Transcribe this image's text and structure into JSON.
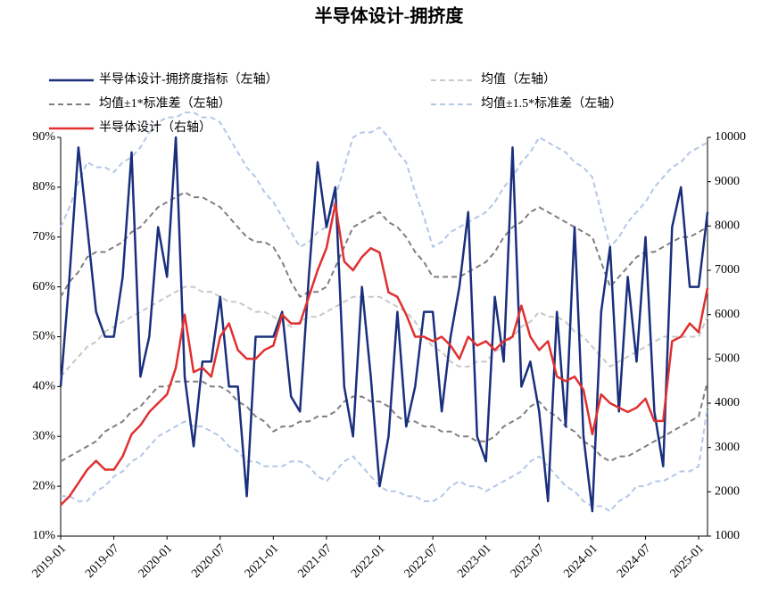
{
  "chart_data": {
    "type": "line",
    "title": "半导体设计-拥挤度",
    "categories": [
      "2019-01",
      null,
      null,
      null,
      null,
      null,
      "2019-07",
      null,
      null,
      null,
      null,
      null,
      "2020-01",
      null,
      null,
      null,
      null,
      null,
      "2020-07",
      null,
      null,
      null,
      null,
      null,
      "2021-01",
      null,
      null,
      null,
      null,
      null,
      "2021-07",
      null,
      null,
      null,
      null,
      null,
      "2022-01",
      null,
      null,
      null,
      null,
      null,
      "2022-07",
      null,
      null,
      null,
      null,
      null,
      "2023-01",
      null,
      null,
      null,
      null,
      null,
      "2023-07",
      null,
      null,
      null,
      null,
      null,
      "2024-01",
      null,
      null,
      null,
      null,
      null,
      "2024-07",
      null,
      null,
      null,
      null,
      null,
      "2025-01",
      null
    ],
    "ylim": [
      10,
      90
    ],
    "yticks": [
      {
        "value": 10,
        "label": "10%"
      },
      {
        "value": 20,
        "label": "20%"
      },
      {
        "value": 30,
        "label": "30%"
      },
      {
        "value": 40,
        "label": "40%"
      },
      {
        "value": 50,
        "label": "50%"
      },
      {
        "value": 60,
        "label": "60%"
      },
      {
        "value": 70,
        "label": "70%"
      },
      {
        "value": 80,
        "label": "80%"
      },
      {
        "value": 90,
        "label": "90%"
      }
    ],
    "y2lim": [
      1000,
      10000
    ],
    "y2ticks": [
      1000,
      2000,
      3000,
      4000,
      5000,
      6000,
      7000,
      8000,
      9000,
      10000
    ],
    "legend": "top",
    "series": [
      {
        "name": "半导体设计-拥挤度指标（左轴）",
        "color": "#1a2f7d",
        "dash": "none",
        "values": [
          40,
          62,
          88,
          72,
          55,
          50,
          50,
          62,
          87,
          42,
          50,
          72,
          62,
          90,
          42,
          28,
          45,
          45,
          58,
          40,
          40,
          18,
          50,
          50,
          50,
          55,
          38,
          35,
          62,
          85,
          72,
          80,
          40,
          30,
          60,
          42,
          20,
          30,
          55,
          32,
          40,
          55,
          55,
          35,
          50,
          60,
          75,
          30,
          25,
          58,
          45,
          88,
          40,
          45,
          35,
          17,
          55,
          32,
          72,
          30,
          15,
          55,
          68,
          35,
          62,
          45,
          70,
          35,
          24,
          72,
          80,
          60,
          60,
          75
        ]
      },
      {
        "name": "均值（左轴）",
        "color": "#c8c8c8",
        "dash": "6,4",
        "values": [
          42,
          44,
          46,
          48,
          49,
          51,
          52,
          53,
          54,
          55,
          56,
          57,
          58,
          59,
          60,
          60,
          59,
          59,
          58,
          57,
          57,
          56,
          55,
          55,
          54,
          53,
          52,
          53,
          54,
          54,
          55,
          56,
          57,
          58,
          58,
          58,
          58,
          57,
          56,
          55,
          53,
          50,
          48,
          47,
          45,
          44,
          44,
          45,
          45,
          47,
          48,
          50,
          52,
          53,
          55,
          54,
          54,
          53,
          51,
          50,
          48,
          46,
          44,
          45,
          46,
          47,
          48,
          49,
          50,
          50,
          50,
          50,
          50,
          54
        ]
      },
      {
        "name": "均值±1*标准差（左轴）",
        "color": "#7f7f7f",
        "dash": "6,4",
        "values": [
          58,
          61,
          63,
          66,
          67,
          67,
          68,
          69,
          71,
          72,
          74,
          76,
          77,
          78,
          79,
          78,
          78,
          77,
          76,
          74,
          72,
          70,
          69,
          69,
          68,
          65,
          61,
          58,
          59,
          59,
          60,
          64,
          68,
          72,
          73,
          74,
          75,
          73,
          72,
          70,
          67,
          65,
          62,
          62,
          62,
          62,
          63,
          64,
          65,
          67,
          70,
          72,
          73,
          75,
          76,
          75,
          74,
          73,
          72,
          71,
          70,
          65,
          60,
          62,
          64,
          66,
          67,
          67,
          68,
          69,
          70,
          70,
          71,
          72
        ],
        "values_lower": [
          25,
          26,
          27,
          28,
          29,
          31,
          32,
          33,
          35,
          36,
          38,
          40,
          40,
          41,
          41,
          41,
          41,
          40,
          40,
          39,
          37,
          36,
          34,
          33,
          31,
          32,
          32,
          33,
          33,
          34,
          34,
          35,
          37,
          38,
          38,
          37,
          37,
          36,
          34,
          33,
          33,
          32,
          32,
          31,
          31,
          30,
          30,
          29,
          29,
          30,
          32,
          33,
          34,
          36,
          37,
          35,
          34,
          32,
          31,
          29,
          28,
          26,
          25,
          26,
          26,
          27,
          28,
          29,
          30,
          31,
          32,
          33,
          34,
          41
        ]
      },
      {
        "name": "均值±1.5*标准差（左轴）",
        "color": "#b4c7e7",
        "dash": "6,4",
        "values": [
          72,
          76,
          81,
          85,
          84,
          84,
          83,
          85,
          86,
          88,
          91,
          93,
          94,
          94,
          95,
          95,
          94,
          94,
          93,
          90,
          87,
          84,
          82,
          79,
          77,
          74,
          71,
          68,
          69,
          71,
          72,
          78,
          84,
          90,
          91,
          91,
          92,
          90,
          87,
          85,
          79,
          74,
          68,
          69,
          71,
          72,
          73,
          74,
          75,
          77,
          80,
          82,
          85,
          87,
          90,
          89,
          88,
          87,
          85,
          84,
          82,
          75,
          68,
          70,
          73,
          75,
          77,
          80,
          82,
          84,
          85,
          87,
          88,
          89
        ],
        "values_lower": [
          18,
          18,
          17,
          17,
          19,
          20,
          22,
          23,
          25,
          26,
          28,
          30,
          31,
          32,
          33,
          32,
          32,
          31,
          30,
          28,
          27,
          25,
          25,
          24,
          24,
          24,
          25,
          25,
          24,
          22,
          21,
          23,
          25,
          26,
          24,
          22,
          20,
          19,
          19,
          18,
          18,
          17,
          17,
          18,
          20,
          21,
          20,
          20,
          19,
          20,
          21,
          22,
          23,
          25,
          26,
          24,
          22,
          20,
          19,
          17,
          16,
          16,
          15,
          17,
          18,
          20,
          20,
          21,
          21,
          22,
          23,
          23,
          24,
          36
        ]
      },
      {
        "name": "半导体设计（右轴）",
        "color": "#e03030",
        "dash": "none",
        "axis": "y2",
        "values": [
          1700,
          1900,
          2200,
          2500,
          2700,
          2500,
          2500,
          2800,
          3300,
          3500,
          3800,
          4000,
          4200,
          4800,
          6000,
          4700,
          4800,
          4600,
          5500,
          5800,
          5200,
          5000,
          5000,
          5200,
          5300,
          6000,
          5800,
          5800,
          6400,
          7000,
          7500,
          8500,
          7200,
          7000,
          7300,
          7500,
          7400,
          6500,
          6400,
          6000,
          5500,
          5500,
          5400,
          5500,
          5300,
          5000,
          5500,
          5300,
          5400,
          5200,
          5400,
          5500,
          6200,
          5500,
          5200,
          5400,
          4600,
          4500,
          4600,
          4300,
          3300,
          4200,
          4000,
          3900,
          3800,
          3900,
          4100,
          3600,
          3600,
          5400,
          5500,
          5800,
          5600,
          6600
        ]
      }
    ]
  }
}
